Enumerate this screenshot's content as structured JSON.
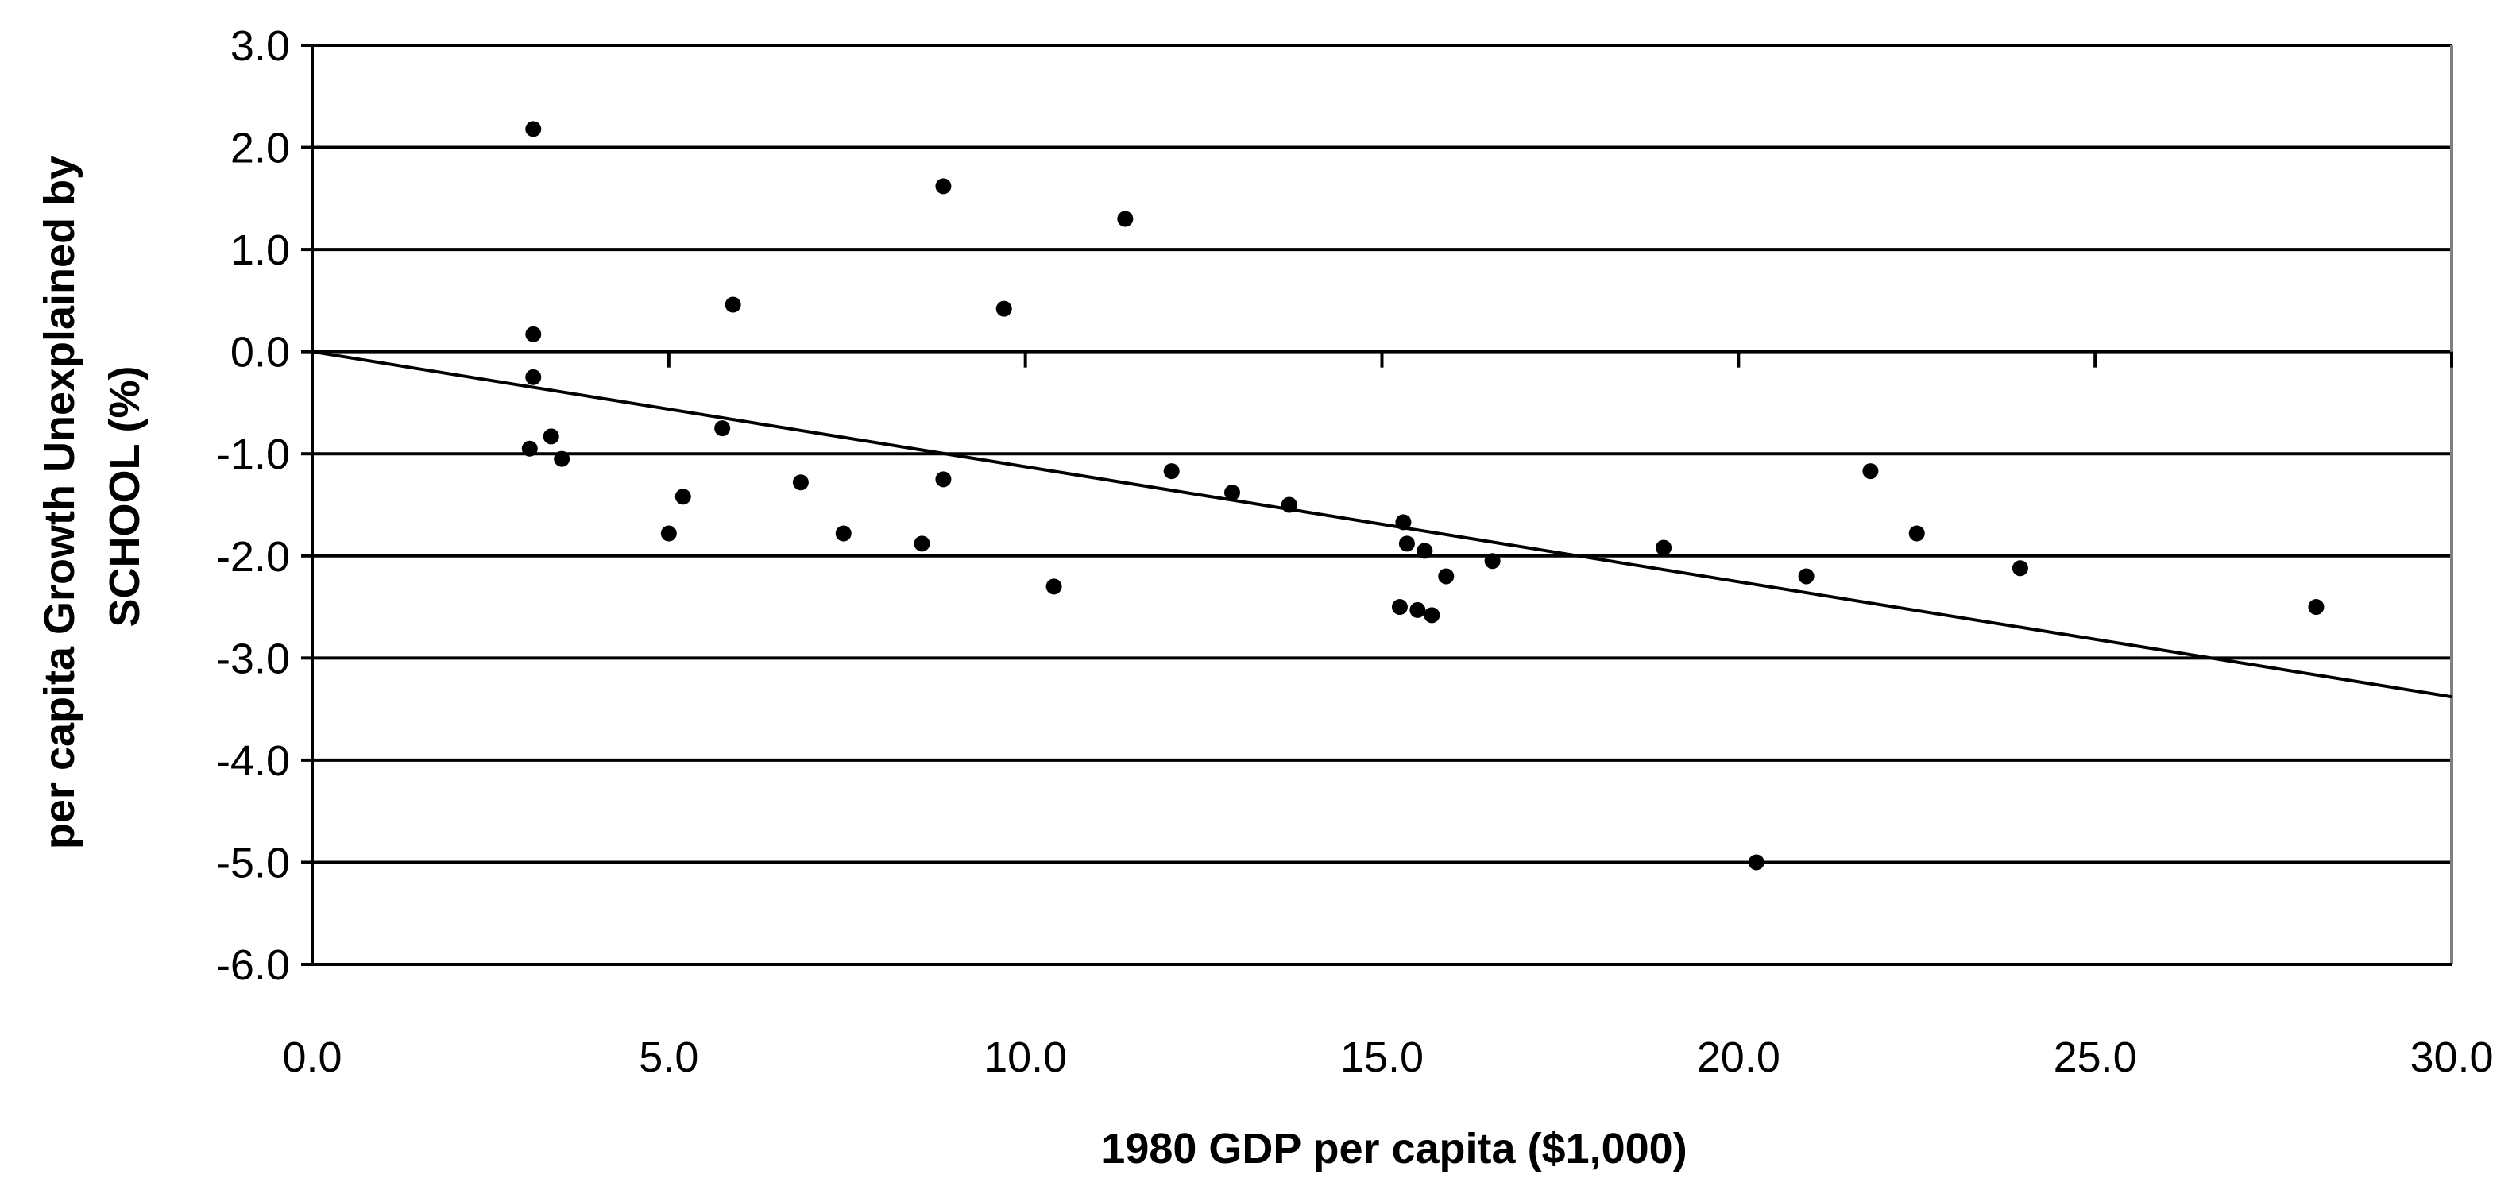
{
  "chart_data": {
    "type": "scatter",
    "title": "",
    "xlabel": "1980 GDP per capita ($1,000)",
    "ylabel_lines": [
      "per capita Growth Unexplained by",
      "SCHOOL (%)"
    ],
    "xlim": [
      0,
      30
    ],
    "ylim": [
      -6,
      3
    ],
    "x_ticks": [
      0,
      5,
      10,
      15,
      20,
      25,
      30
    ],
    "x_tick_labels": [
      "0.0",
      "5.0",
      "10.0",
      "15.0",
      "20.0",
      "25.0",
      "30.0"
    ],
    "y_ticks": [
      3,
      2,
      1,
      0,
      -1,
      -2,
      -3,
      -4,
      -5,
      -6
    ],
    "y_tick_labels": [
      "3.0",
      "2.0",
      "1.0",
      "0.0",
      "-1.0",
      "-2.0",
      "-3.0",
      "-4.0",
      "-5.0",
      "-6.0"
    ],
    "grid": "horizontal",
    "legend": "none",
    "points": [
      {
        "x": 3.1,
        "y": 2.18
      },
      {
        "x": 3.1,
        "y": 0.17
      },
      {
        "x": 3.1,
        "y": -0.25
      },
      {
        "x": 3.05,
        "y": -0.95
      },
      {
        "x": 3.35,
        "y": -0.83
      },
      {
        "x": 3.5,
        "y": -1.05
      },
      {
        "x": 5.0,
        "y": -1.78
      },
      {
        "x": 5.2,
        "y": -1.42
      },
      {
        "x": 5.75,
        "y": -0.75
      },
      {
        "x": 5.9,
        "y": 0.46
      },
      {
        "x": 6.85,
        "y": -1.28
      },
      {
        "x": 7.45,
        "y": -1.78
      },
      {
        "x": 8.55,
        "y": -1.88
      },
      {
        "x": 8.85,
        "y": 1.62
      },
      {
        "x": 8.85,
        "y": -1.25
      },
      {
        "x": 9.7,
        "y": 0.42
      },
      {
        "x": 10.4,
        "y": -2.3
      },
      {
        "x": 11.4,
        "y": 1.3
      },
      {
        "x": 12.05,
        "y": -1.17
      },
      {
        "x": 12.9,
        "y": -1.38
      },
      {
        "x": 13.7,
        "y": -1.5
      },
      {
        "x": 15.25,
        "y": -2.5
      },
      {
        "x": 15.3,
        "y": -1.67
      },
      {
        "x": 15.35,
        "y": -1.88
      },
      {
        "x": 15.5,
        "y": -2.53
      },
      {
        "x": 15.6,
        "y": -1.95
      },
      {
        "x": 15.7,
        "y": -2.58
      },
      {
        "x": 15.9,
        "y": -2.2
      },
      {
        "x": 16.55,
        "y": -2.05
      },
      {
        "x": 18.95,
        "y": -1.92
      },
      {
        "x": 20.25,
        "y": -5.0
      },
      {
        "x": 20.95,
        "y": -2.2
      },
      {
        "x": 21.85,
        "y": -1.17
      },
      {
        "x": 22.5,
        "y": -1.78
      },
      {
        "x": 23.95,
        "y": -2.12
      },
      {
        "x": 28.1,
        "y": -2.5
      }
    ],
    "trendline": {
      "x": [
        0,
        30
      ],
      "y": [
        0,
        -3.38
      ]
    },
    "colors": {
      "points": "#000000",
      "line": "#000000",
      "grid": "#000000",
      "axis": "#808080",
      "background": "#ffffff"
    }
  }
}
